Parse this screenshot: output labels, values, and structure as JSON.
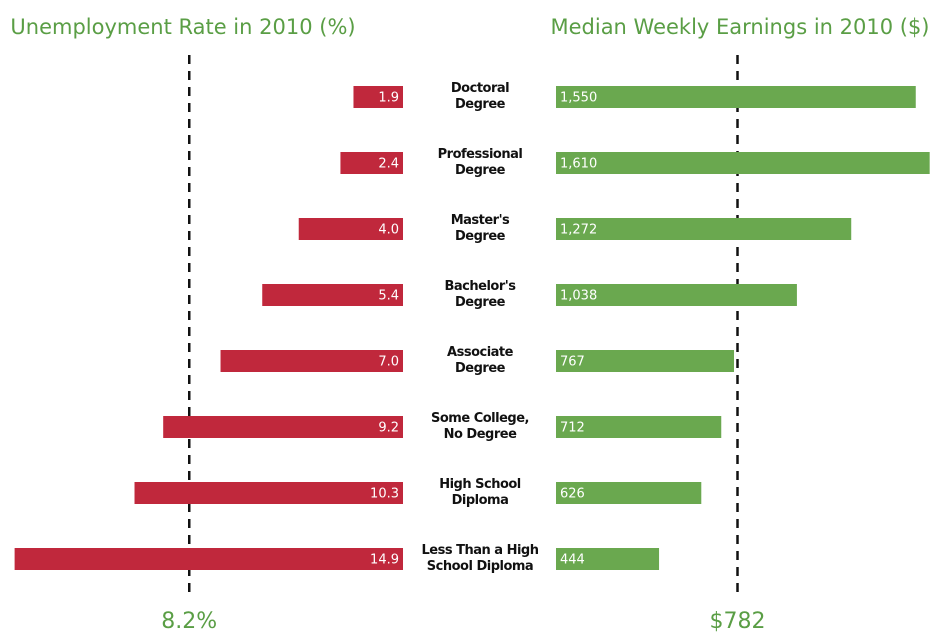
{
  "chart_data": [
    {
      "type": "bar",
      "orientation": "horizontal",
      "title": "Unemployment Rate in 2010 (%)",
      "categories": [
        "Doctoral\nDegree",
        "Professional\nDegree",
        "Master's\nDegree",
        "Bachelor's\nDegree",
        "Associate\nDegree",
        "Some College,\nNo Degree",
        "High School\nDiploma",
        "Less Than a High\nSchool Diploma"
      ],
      "values": [
        1.9,
        2.4,
        4.0,
        5.4,
        7.0,
        9.2,
        10.3,
        14.9
      ],
      "value_labels": [
        "1.9",
        "2.4",
        "4.0",
        "5.4",
        "7.0",
        "9.2",
        "10.3",
        "14.9"
      ],
      "color": "#c0283c",
      "xlim": [
        0,
        15
      ],
      "x_reversed": true,
      "reference": {
        "value": 8.2,
        "label": "8.2%"
      }
    },
    {
      "type": "bar",
      "orientation": "horizontal",
      "title": "Median Weekly Earnings in 2010 ($)",
      "values": [
        1550,
        1610,
        1272,
        1038,
        767,
        712,
        626,
        444
      ],
      "value_labels": [
        "1,550",
        "1,610",
        "1,272",
        "1,038",
        "767",
        "712",
        "626",
        "444"
      ],
      "color": "#6aa84f",
      "xlim": [
        0,
        1620
      ],
      "x_reversed": false,
      "reference": {
        "value": 782,
        "label": "$782"
      }
    }
  ]
}
